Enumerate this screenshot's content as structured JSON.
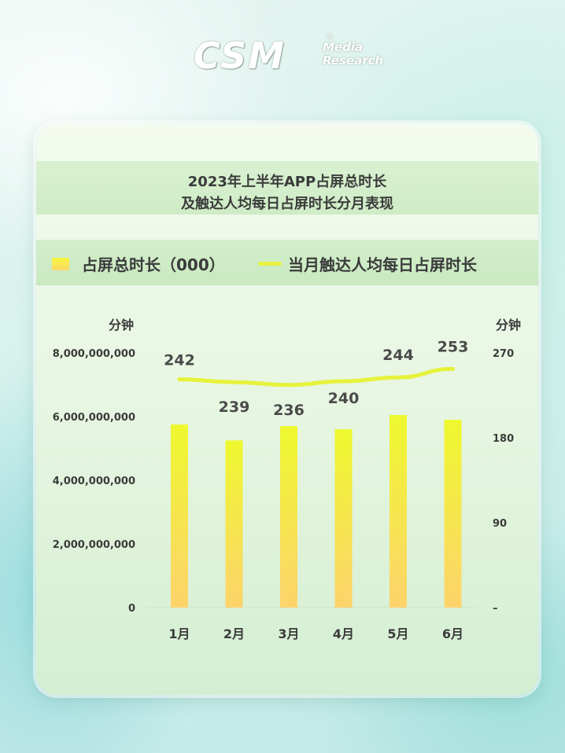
{
  "logo": {
    "main": "CSM",
    "sub1": "Media",
    "sub2": "Research",
    "reg": "®"
  },
  "title": {
    "line1": "2023年上半年APP占屏总时长",
    "line2": "及触达人均每日占屏时长分月表现"
  },
  "legend": {
    "bar_label": "占屏总时长（000）",
    "line_label": "当月触达人均每日占屏时长"
  },
  "colors": {
    "bar_top": "#eef82e",
    "bar_bottom": "#fdd36c",
    "line": "#e6f23a",
    "text": "#3b3b3b"
  },
  "chart_data": {
    "type": "bar",
    "categories": [
      "1月",
      "2月",
      "3月",
      "4月",
      "5月",
      "6月"
    ],
    "series": [
      {
        "name": "占屏总时长（000）",
        "type": "bar",
        "axis": "left",
        "values": [
          5750000000,
          5250000000,
          5700000000,
          5600000000,
          6050000000,
          5900000000
        ]
      },
      {
        "name": "当月触达人均每日占屏时长",
        "type": "line",
        "axis": "right",
        "values": [
          242,
          239,
          236,
          240,
          244,
          253
        ]
      }
    ],
    "left_axis": {
      "unit": "分钟",
      "ylim": [
        0,
        8000000000
      ],
      "ticks": [
        0,
        2000000000,
        4000000000,
        6000000000,
        8000000000
      ],
      "tick_labels": [
        "0",
        "2,000,000,000",
        "4,000,000,000",
        "6,000,000,000",
        "8,000,000,000"
      ]
    },
    "right_axis": {
      "unit": "分钟",
      "ylim": [
        0,
        270
      ],
      "ticks": [
        0,
        90,
        180,
        270
      ],
      "tick_labels": [
        "–",
        "90",
        "180",
        "270"
      ]
    },
    "data_labels": [
      "242",
      "239",
      "236",
      "240",
      "244",
      "253"
    ],
    "grid": false,
    "legend_position": "top"
  }
}
